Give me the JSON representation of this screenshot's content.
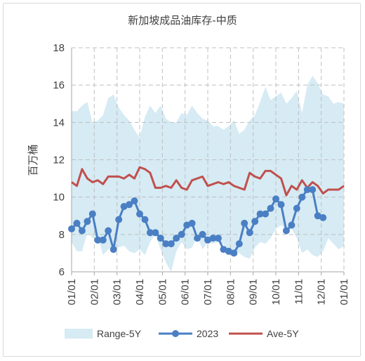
{
  "chart_data": {
    "type": "line",
    "title": "新加坡成品油库存-中质",
    "ylabel": "百万桶",
    "ylim": [
      6,
      18
    ],
    "yticks": [
      6,
      8,
      10,
      12,
      14,
      16,
      18
    ],
    "xlim": [
      1,
      53
    ],
    "xtick_labels": [
      "01/01",
      "02/01",
      "03/01",
      "04/01",
      "05/01",
      "06/01",
      "07/01",
      "08/01",
      "09/01",
      "10/01",
      "11/01",
      "12/01",
      "01/01"
    ],
    "grid": true,
    "legend_position": "bottom",
    "colors": {
      "range": "#d6ebf4",
      "y2023": "#4a7fc4",
      "ave": "#c0504d",
      "grid": "#bfbfbf",
      "axis": "#a6a6a6"
    },
    "series": [
      {
        "name": "Range-5Y",
        "kind": "band",
        "upper": [
          14.6,
          14.6,
          14.9,
          15.1,
          14.0,
          14.1,
          14.4,
          15.3,
          15.5,
          14.8,
          14.4,
          14.1,
          13.6,
          13.2,
          14.3,
          14.9,
          14.5,
          14.9,
          14.2,
          14.0,
          14.0,
          14.5,
          14.4,
          14.9,
          14.5,
          14.2,
          14.1,
          13.8,
          13.8,
          13.6,
          13.8,
          14.1,
          13.4,
          13.6,
          14.1,
          14.4,
          15.1,
          15.9,
          15.2,
          15.4,
          15.6,
          15.0,
          15.3,
          15.7,
          14.5,
          16.0,
          16.5,
          16.1,
          15.5,
          15.4,
          15.0,
          15.1,
          15.0
        ],
        "lower": [
          7.6,
          7.1,
          7.1,
          8.1,
          7.8,
          7.9,
          6.9,
          7.2,
          7.4,
          7.3,
          7.4,
          7.1,
          7.0,
          7.2,
          6.9,
          7.6,
          8.0,
          7.2,
          6.5,
          6.0,
          7.1,
          7.6,
          7.2,
          7.3,
          7.9,
          7.2,
          7.6,
          7.5,
          7.6,
          7.5,
          7.0,
          7.2,
          7.0,
          6.8,
          6.7,
          7.3,
          7.6,
          7.5,
          7.8,
          8.3,
          8.5,
          8.2,
          8.3,
          7.8,
          7.0,
          7.2,
          6.9,
          6.8,
          7.1,
          7.8,
          7.5,
          7.2,
          7.4
        ]
      },
      {
        "name": "2023",
        "kind": "line",
        "values": [
          8.3,
          8.6,
          8.2,
          8.7,
          9.1,
          7.7,
          7.7,
          8.2,
          7.2,
          8.8,
          9.5,
          9.6,
          9.8,
          9.1,
          8.8,
          8.1,
          8.1,
          7.8,
          7.5,
          7.5,
          7.8,
          8.0,
          8.5,
          8.6,
          7.8,
          8.0,
          7.7,
          7.8,
          7.8,
          7.2,
          7.1,
          7.0,
          7.5,
          8.6,
          8.1,
          8.7,
          9.1,
          9.1,
          9.4,
          9.9,
          9.6,
          8.2,
          8.5,
          9.4,
          10.0,
          10.4,
          10.4,
          9.0,
          8.9,
          null,
          null,
          null,
          null
        ]
      },
      {
        "name": "Ave-5Y",
        "kind": "line",
        "values": [
          10.8,
          10.6,
          11.5,
          11.0,
          10.8,
          10.9,
          10.7,
          11.1,
          11.1,
          11.1,
          11.0,
          11.2,
          11.0,
          11.6,
          11.5,
          11.3,
          10.5,
          10.5,
          10.6,
          10.5,
          10.9,
          10.5,
          10.4,
          10.9,
          11.0,
          11.1,
          10.6,
          10.7,
          10.8,
          10.7,
          10.8,
          10.6,
          10.5,
          10.4,
          11.3,
          11.1,
          11.0,
          11.4,
          11.4,
          11.2,
          11.0,
          10.1,
          10.6,
          10.4,
          10.9,
          10.5,
          10.8,
          10.6,
          10.2,
          10.4,
          10.4,
          10.4,
          10.6
        ]
      }
    ]
  }
}
